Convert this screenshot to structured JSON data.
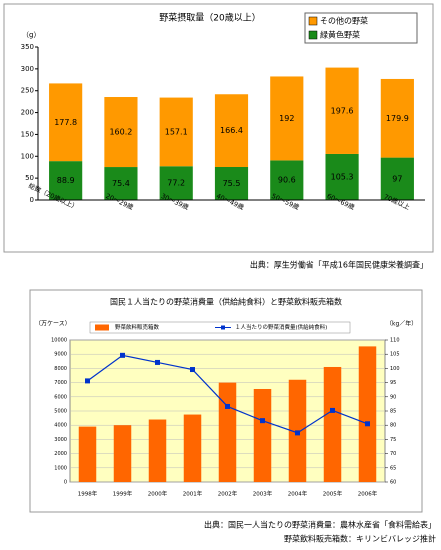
{
  "chart_data": [
    {
      "type": "stacked_bar",
      "title": "野菜摂取量（20歳以上）",
      "y_label": "（g）",
      "categories": [
        "総数（20歳以上）",
        "20～29歳",
        "30～39歳",
        "40～49歳",
        "50～59歳",
        "60～69歳",
        "70歳以上"
      ],
      "series": [
        {
          "name": "緑黄色野菜",
          "color": "#1a8a1a",
          "values": [
            88.9,
            75.4,
            77.2,
            75.5,
            90.6,
            105.3,
            97
          ]
        },
        {
          "name": "その他の野菜",
          "color": "#ff9900",
          "values": [
            177.8,
            160.2,
            157.1,
            166.4,
            192,
            197.6,
            179.9
          ]
        }
      ],
      "ylim": [
        0,
        350
      ],
      "yticks": [
        0,
        50,
        100,
        150,
        200,
        250,
        300,
        350
      ],
      "grid": false,
      "source": "出典：厚生労働省「平成16年国民健康栄養調査」"
    },
    {
      "type": "bar_line",
      "title": "国民１人当たりの野菜消費量（供給純食料）と野菜飲料販売箱数",
      "y_label": "（万ケース）",
      "y2_label": "（kg／年）",
      "categories": [
        "1998年",
        "1999年",
        "2000年",
        "2001年",
        "2002年",
        "2003年",
        "2004年",
        "2005年",
        "2006年"
      ],
      "series": [
        {
          "name": "野菜飲料販売箱数",
          "color": "#ff6600",
          "values": [
            3900,
            4000,
            4400,
            4750,
            7000,
            6550,
            7200,
            8100,
            9550
          ]
        },
        {
          "name": "１人当たりの野菜消費量(供給純食料)",
          "color": "#0033cc",
          "axis": "y2",
          "values": [
            95.6,
            104.6,
            102.1,
            99.6,
            86.6,
            81.6,
            77.3,
            85.2,
            80.5
          ]
        }
      ],
      "ylim": [
        0,
        10000
      ],
      "yticks": [
        0,
        1000,
        2000,
        3000,
        4000,
        5000,
        6000,
        7000,
        8000,
        9000,
        10000
      ],
      "y2lim": [
        60,
        110
      ],
      "y2ticks": [
        60,
        65,
        70,
        75,
        80,
        85,
        90,
        95,
        100,
        105,
        110
      ],
      "grid": true,
      "source": [
        "出典：国民一人当たりの野菜消費量：農林水産省「食料需給表」",
        "野菜飲料販売箱数：キリンビバレッジ推計"
      ]
    }
  ]
}
